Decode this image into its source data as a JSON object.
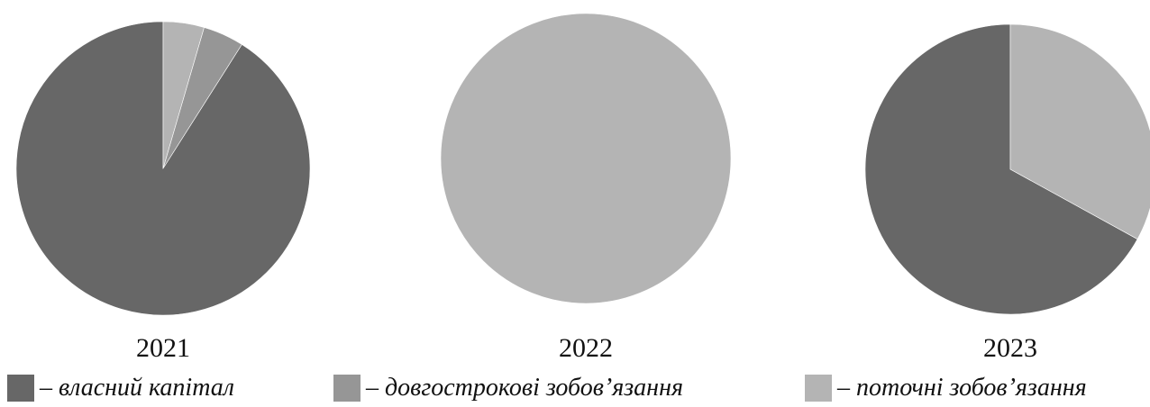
{
  "chart_data": {
    "type": "pie",
    "categories": [
      "власний капітал",
      "довгострокові зобов’язання",
      "поточні зобов’язання"
    ],
    "colors": [
      "#676767",
      "#969696",
      "#b4b4b4"
    ],
    "charts": [
      {
        "year": "2021",
        "values": [
          91,
          4.5,
          4.5
        ]
      },
      {
        "year": "2022",
        "values": [
          0,
          0,
          100
        ]
      },
      {
        "year": "2023",
        "values": [
          67,
          0,
          33
        ]
      }
    ],
    "legend": {
      "position": "bottom",
      "items": [
        {
          "label": "– власний капітал",
          "color": "#676767"
        },
        {
          "label": "– довгострокові зобов’язання",
          "color": "#969696"
        },
        {
          "label": "– поточні зобов’язання",
          "color": "#b4b4b4"
        }
      ]
    }
  }
}
